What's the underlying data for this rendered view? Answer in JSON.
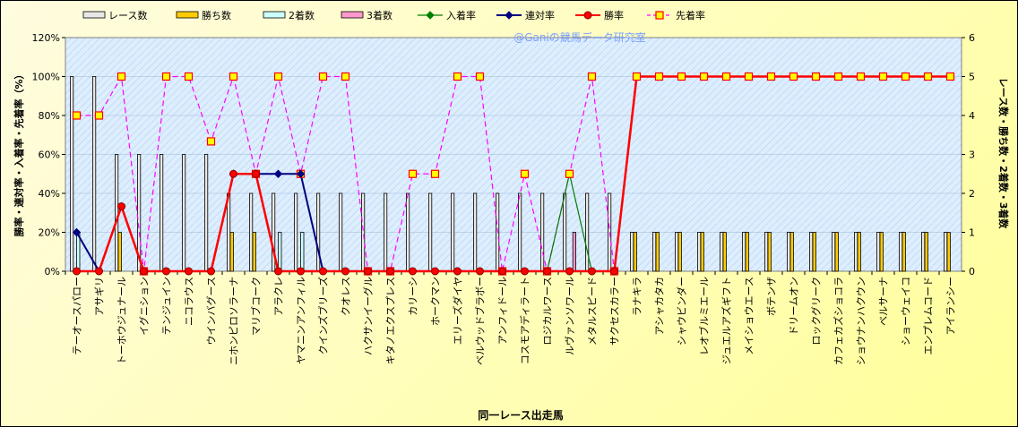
{
  "chart_data": {
    "type": "bar",
    "title": "",
    "watermark": "@Ganiの競馬データ研究室",
    "xlabel": "同一レース出走馬",
    "ylabel_left": "勝率・連対率・入着率・先着率（%）",
    "ylabel_right": "レース数・勝ち数・2着数・3着数",
    "ylim_left": [
      0,
      120
    ],
    "yticks_left": [
      "0%",
      "20%",
      "40%",
      "60%",
      "80%",
      "100%",
      "120%"
    ],
    "ylim_right": [
      0,
      6
    ],
    "yticks_right": [
      "0",
      "1",
      "2",
      "3",
      "4",
      "5",
      "6"
    ],
    "legend_position": "top",
    "grid": true,
    "colors": {
      "races": "#e8e8e8",
      "wins": "#ffcc00",
      "second": "#ccffff",
      "third": "#ff99cc",
      "in_place_rate": "#008000",
      "top2_rate": "#000080",
      "win_rate": "#ff0000",
      "beat_rate": "#ff00ff",
      "plot_bg": "#ddeeff"
    },
    "categories": [
      "テーオースパロー",
      "アサギリ",
      "トーホウジュナール",
      "イグニション",
      "テンジュイン",
      "ニコラウス",
      "ウインバグース",
      "ニホンピロソラーナ",
      "マリブコーク",
      "アラクレ",
      "ヤマニンアンフィル",
      "クインズブリーズ",
      "クオレス",
      "ハクサンイーグル",
      "キタノエクスプレス",
      "カリーシ",
      "ホークマン",
      "エリーズダイヤ",
      "ベルウッドブラボー",
      "アンフィドール",
      "コスモアディラート",
      "ロジカルワース",
      "ルヴァンソワール",
      "メタルスピード",
      "サクセスカラー",
      "ラナキラ",
      "アシャカタカ",
      "シャウビンダー",
      "レオブルミエール",
      "ジュエルアズギフト",
      "メイショウエース",
      "ボテンザ",
      "ドリームオン",
      "ロックグリーク",
      "カフェカズショコラ",
      "ショウナンハクウン",
      "ベルサーナ",
      "ショーウェイコ",
      "エンプレムコード",
      "アイランシー"
    ],
    "series": [
      {
        "name": "レース数",
        "axis": "right",
        "kind": "bar",
        "values": [
          5,
          5,
          3,
          3,
          3,
          3,
          3,
          2,
          2,
          2,
          2,
          2,
          2,
          2,
          2,
          2,
          2,
          2,
          2,
          2,
          2,
          2,
          2,
          2,
          2,
          1,
          1,
          1,
          1,
          1,
          1,
          1,
          1,
          1,
          1,
          1,
          1,
          1,
          1,
          1
        ]
      },
      {
        "name": "勝ち数",
        "axis": "right",
        "kind": "bar",
        "values": [
          0,
          0,
          1,
          0,
          0,
          0,
          0,
          1,
          1,
          0,
          0,
          0,
          0,
          0,
          0,
          0,
          0,
          0,
          0,
          0,
          0,
          0,
          0,
          0,
          0,
          1,
          1,
          1,
          1,
          1,
          1,
          1,
          1,
          1,
          1,
          1,
          1,
          1,
          1,
          1
        ]
      },
      {
        "name": "2着数",
        "axis": "right",
        "kind": "bar",
        "values": [
          1,
          0,
          0,
          0,
          0,
          0,
          0,
          0,
          0,
          1,
          1,
          0,
          0,
          0,
          0,
          0,
          0,
          0,
          0,
          0,
          0,
          0,
          0,
          0,
          0,
          0,
          0,
          0,
          0,
          0,
          0,
          0,
          0,
          0,
          0,
          0,
          0,
          0,
          0,
          0
        ]
      },
      {
        "name": "3着数",
        "axis": "right",
        "kind": "bar",
        "values": [
          0,
          0,
          0,
          0,
          0,
          0,
          0,
          0,
          0,
          0,
          0,
          0,
          0,
          0,
          0,
          0,
          0,
          0,
          0,
          0,
          0,
          0,
          1,
          0,
          0,
          0,
          0,
          0,
          0,
          0,
          0,
          0,
          0,
          0,
          0,
          0,
          0,
          0,
          0,
          0
        ]
      },
      {
        "name": "入着率",
        "axis": "left",
        "kind": "line",
        "marker": "diamond",
        "values": [
          20,
          0,
          33.3,
          0,
          0,
          0,
          0,
          50,
          50,
          50,
          50,
          0,
          0,
          0,
          0,
          0,
          0,
          0,
          0,
          0,
          0,
          0,
          50,
          0,
          0,
          100,
          100,
          100,
          100,
          100,
          100,
          100,
          100,
          100,
          100,
          100,
          100,
          100,
          100,
          100
        ]
      },
      {
        "name": "連対率",
        "axis": "left",
        "kind": "line",
        "marker": "diamond",
        "values": [
          20,
          0,
          33.3,
          0,
          0,
          0,
          0,
          50,
          50,
          50,
          50,
          0,
          0,
          0,
          0,
          0,
          0,
          0,
          0,
          0,
          0,
          0,
          0,
          0,
          0,
          100,
          100,
          100,
          100,
          100,
          100,
          100,
          100,
          100,
          100,
          100,
          100,
          100,
          100,
          100
        ]
      },
      {
        "name": "勝率",
        "axis": "left",
        "kind": "line",
        "marker": "circle",
        "values": [
          0,
          0,
          33.3,
          0,
          0,
          0,
          0,
          50,
          50,
          0,
          0,
          0,
          0,
          0,
          0,
          0,
          0,
          0,
          0,
          0,
          0,
          0,
          0,
          0,
          0,
          100,
          100,
          100,
          100,
          100,
          100,
          100,
          100,
          100,
          100,
          100,
          100,
          100,
          100,
          100
        ]
      },
      {
        "name": "先着率",
        "axis": "left",
        "kind": "line",
        "marker": "square",
        "dashed": true,
        "values": [
          80,
          80,
          100,
          0,
          100,
          100,
          66.7,
          100,
          50,
          100,
          50,
          100,
          100,
          0,
          0,
          50,
          50,
          100,
          100,
          0,
          50,
          0,
          50,
          100,
          0,
          100,
          100,
          100,
          100,
          100,
          100,
          100,
          100,
          100,
          100,
          100,
          100,
          100,
          100,
          100
        ]
      }
    ]
  }
}
